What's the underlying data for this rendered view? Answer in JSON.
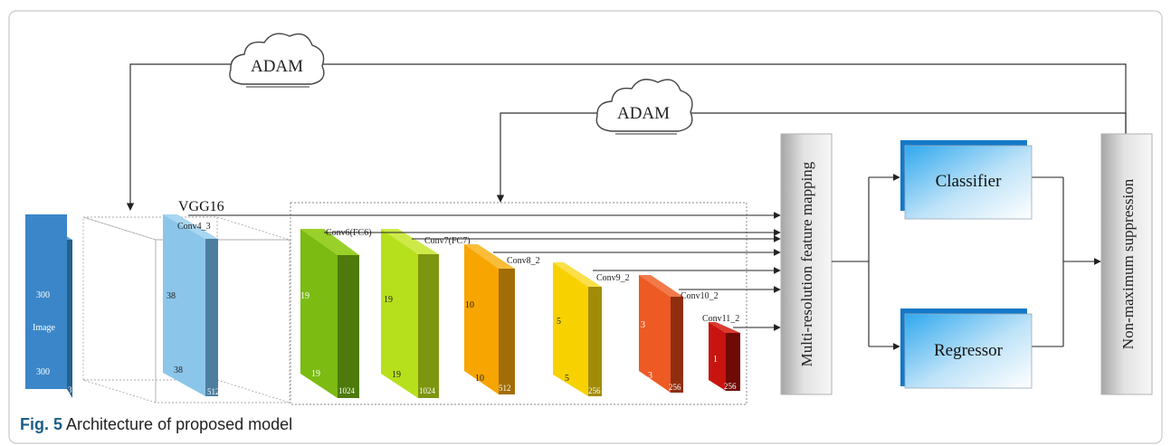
{
  "clouds": [
    "ADAM",
    "ADAM"
  ],
  "backbone": "VGG16",
  "input": {
    "label": "Image",
    "h": "300",
    "w": "300",
    "c": "3"
  },
  "layers": [
    {
      "name": "Conv4_3",
      "h": "38",
      "w": "38",
      "c": "512"
    },
    {
      "name": "Conv6(FC6)",
      "h": "19",
      "w": "19",
      "c": "1024"
    },
    {
      "name": "Conv7(FC7)",
      "h": "19",
      "w": "19",
      "c": "1024"
    },
    {
      "name": "Conv8_2",
      "h": "10",
      "w": "10",
      "c": "512"
    },
    {
      "name": "Conv9_2",
      "h": "5",
      "w": "5",
      "c": "256"
    },
    {
      "name": "Conv10_2",
      "h": "3",
      "w": "3",
      "c": "256"
    },
    {
      "name": "Conv11_2",
      "h": "1",
      "c": "256"
    }
  ],
  "mapping": "Multi-resolution feature mapping",
  "classifier": "Classifier",
  "regressor": "Regressor",
  "nms": "Non-maximum suppression",
  "caption": {
    "label": "Fig. 5",
    "text": "Architecture of proposed model"
  },
  "colors": {
    "input": "#3b86c9",
    "conv4": "#8bc6ea",
    "conv6": "#7bbb12",
    "conv7": "#b7e01c",
    "conv8": "#f7a500",
    "conv9": "#f8d200",
    "conv10": "#ee5a24",
    "conv11": "#c8140e"
  }
}
